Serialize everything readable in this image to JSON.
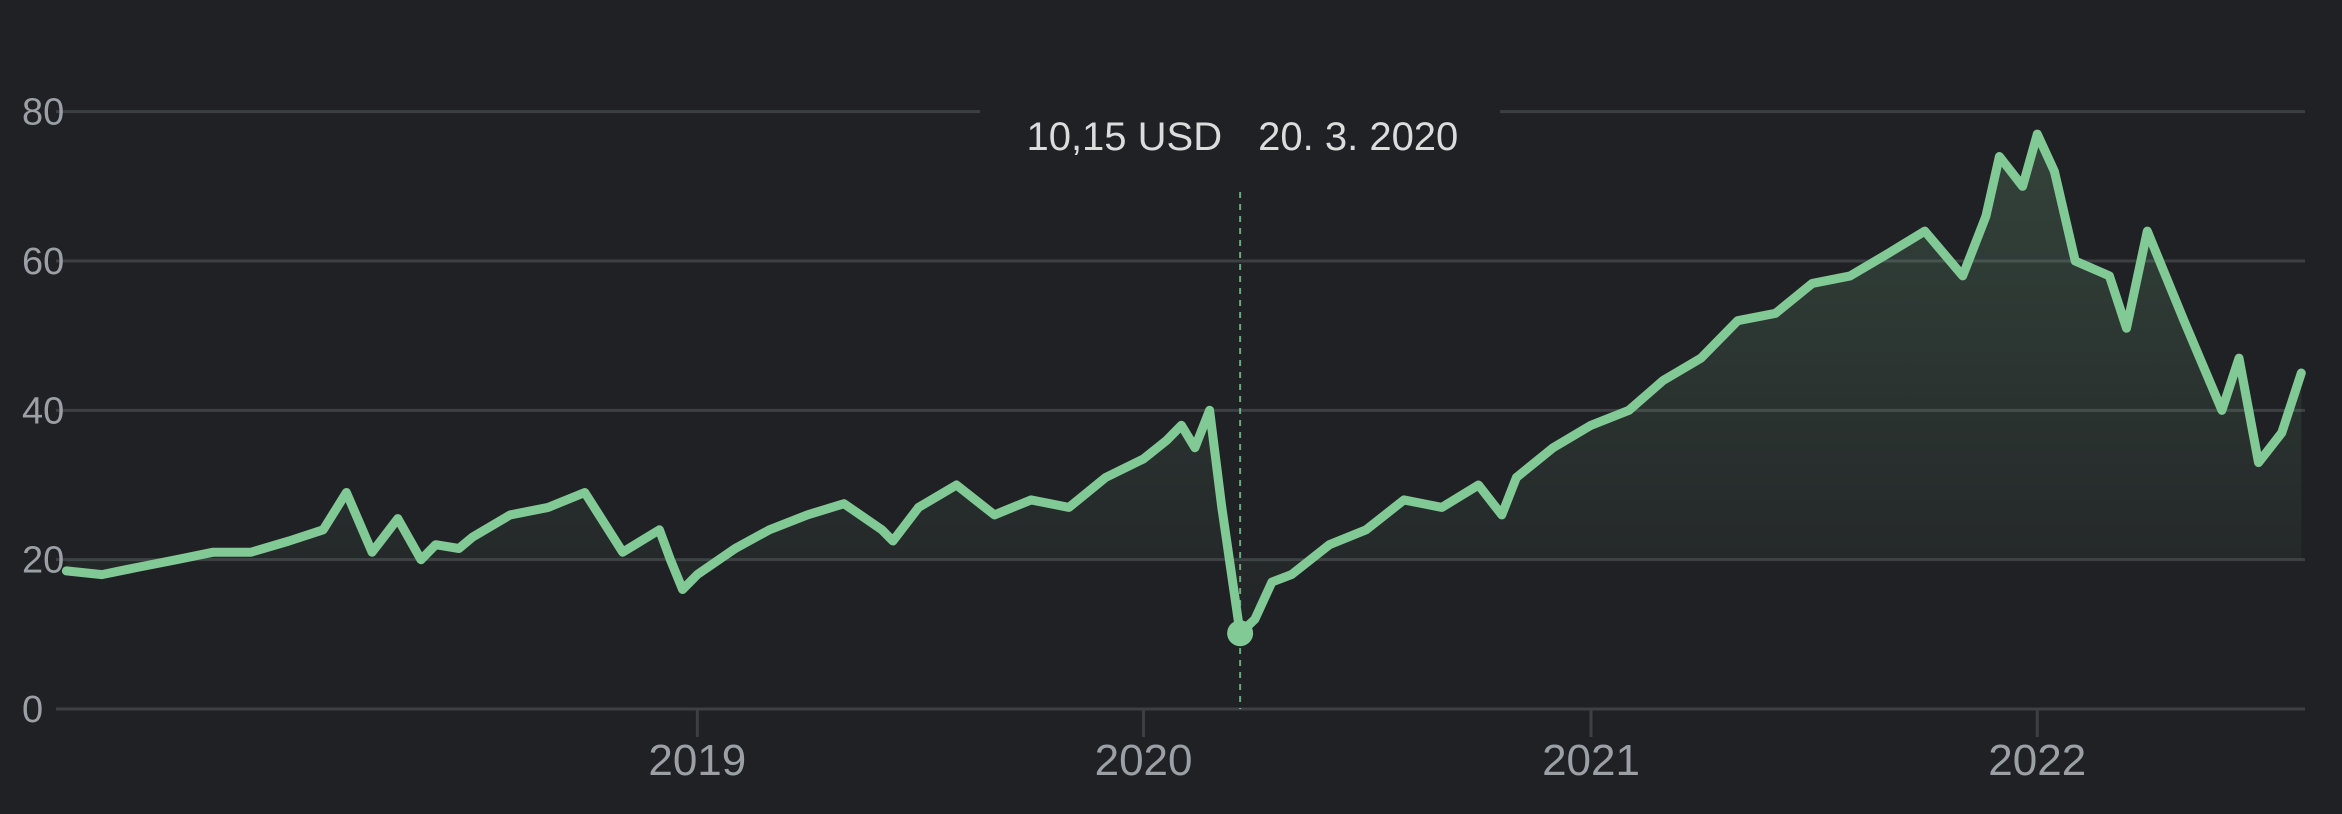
{
  "chart_data": {
    "type": "area",
    "xlim": [
      "2017-08-01",
      "2022-08-08"
    ],
    "ylim": [
      0,
      90
    ],
    "yticks": [
      0,
      20,
      40,
      60,
      80
    ],
    "ytick_labels": [
      "0",
      "20",
      "40",
      "60",
      "80"
    ],
    "xticks": [
      "2019-01-01",
      "2020-01-01",
      "2021-01-01",
      "2022-01-01"
    ],
    "xtick_labels": [
      "2019",
      "2020",
      "2021",
      "2022"
    ],
    "grid": true,
    "series": [
      {
        "color": "#81c995",
        "x": [
          "2017-08-03",
          "2017-09-01",
          "2017-10-01",
          "2017-11-01",
          "2017-12-01",
          "2018-01-01",
          "2018-02-01",
          "2018-03-01",
          "2018-03-20",
          "2018-04-10",
          "2018-05-01",
          "2018-05-20",
          "2018-06-01",
          "2018-06-20",
          "2018-07-01",
          "2018-08-01",
          "2018-09-01",
          "2018-10-01",
          "2018-11-01",
          "2018-12-01",
          "2018-12-10",
          "2018-12-20",
          "2019-01-01",
          "2019-02-01",
          "2019-03-01",
          "2019-04-01",
          "2019-05-01",
          "2019-06-01",
          "2019-06-10",
          "2019-07-01",
          "2019-08-01",
          "2019-09-01",
          "2019-10-01",
          "2019-11-01",
          "2019-12-01",
          "2020-01-01",
          "2020-01-20",
          "2020-02-01",
          "2020-02-12",
          "2020-02-24",
          "2020-03-05",
          "2020-03-20",
          "2020-04-01",
          "2020-04-15",
          "2020-05-01",
          "2020-06-01",
          "2020-07-01",
          "2020-08-01",
          "2020-09-01",
          "2020-10-01",
          "2020-10-20",
          "2020-11-01",
          "2020-12-01",
          "2021-01-01",
          "2021-02-01",
          "2021-03-01",
          "2021-04-01",
          "2021-05-01",
          "2021-06-01",
          "2021-07-01",
          "2021-08-01",
          "2021-09-01",
          "2021-10-01",
          "2021-11-01",
          "2021-11-20",
          "2021-12-01",
          "2021-12-20",
          "2022-01-01",
          "2022-01-15",
          "2022-02-01",
          "2022-03-01",
          "2022-03-15",
          "2022-04-01",
          "2022-05-01",
          "2022-06-01",
          "2022-06-15",
          "2022-07-01",
          "2022-07-20",
          "2022-08-05"
        ],
        "y": [
          18.5,
          18.0,
          19.0,
          20.0,
          21.0,
          21.0,
          22.5,
          24.0,
          29.0,
          21.0,
          25.5,
          20.0,
          22.0,
          21.5,
          23.0,
          26.0,
          27.0,
          29.0,
          21.0,
          24.0,
          20.0,
          16.0,
          18.0,
          21.5,
          24.0,
          26.0,
          27.5,
          24.0,
          22.5,
          27.0,
          30.0,
          26.0,
          28.0,
          27.0,
          31.0,
          33.5,
          36.0,
          38.0,
          35.0,
          40.0,
          27.0,
          10.15,
          12.0,
          17.0,
          18.0,
          22.0,
          24.0,
          28.0,
          27.0,
          30.0,
          26.0,
          31.0,
          35.0,
          38.0,
          40.0,
          44.0,
          47.0,
          52.0,
          53.0,
          57.0,
          58.0,
          61.0,
          64.0,
          58.0,
          66.0,
          74.0,
          70.0,
          77.0,
          72.0,
          60.0,
          58.0,
          51.0,
          64.0,
          52.0,
          40.0,
          47.0,
          33.0,
          37.0,
          45.0
        ]
      }
    ],
    "annotations": [
      {
        "x": "2020-03-20",
        "y": 10.15,
        "value_label": "10,15 USD",
        "date_label": "20. 3. 2020"
      }
    ]
  },
  "tooltip": {
    "value": "10,15 USD",
    "date": "20. 3. 2020"
  }
}
